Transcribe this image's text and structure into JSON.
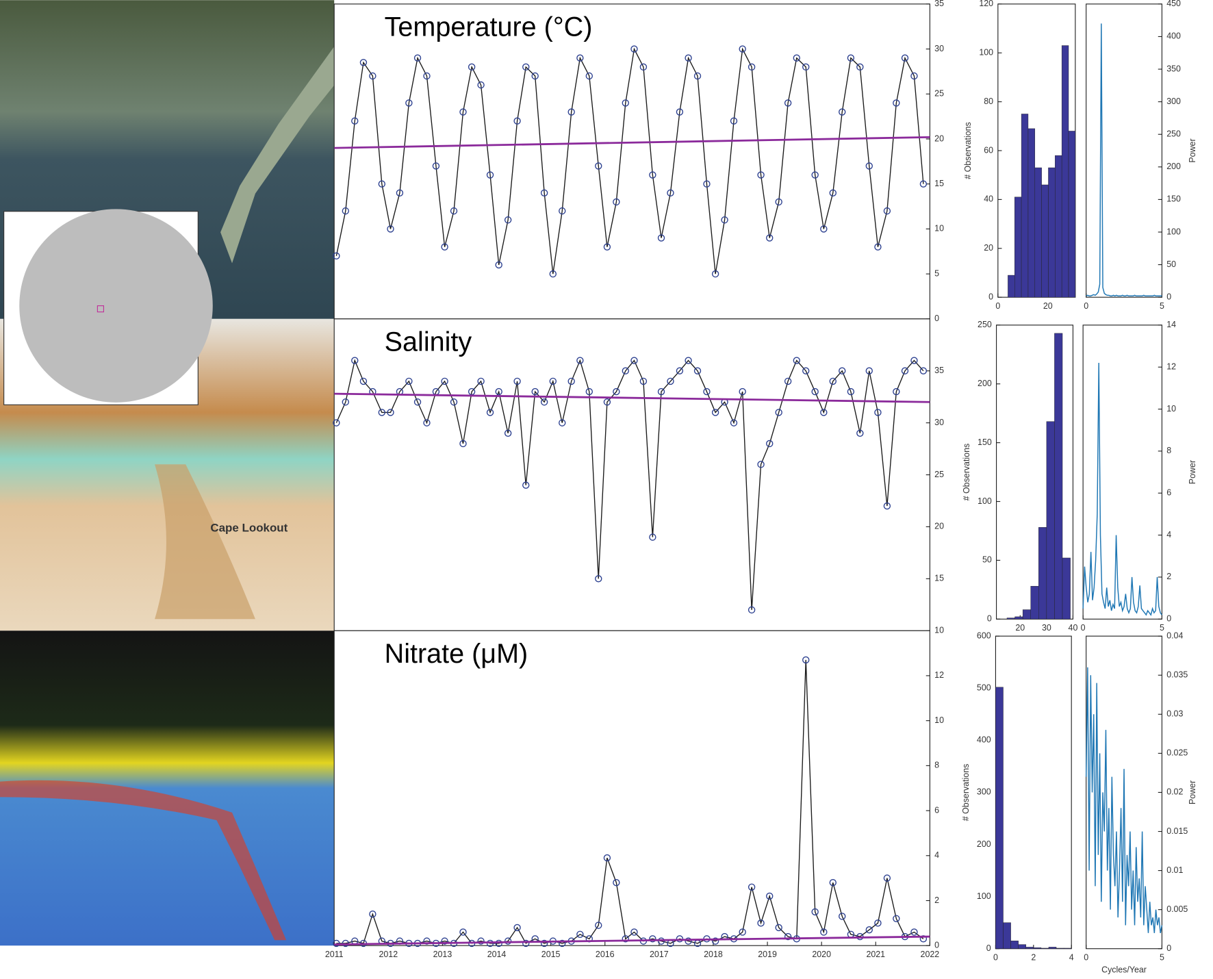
{
  "map_label": "Cape Lookout",
  "chart_data": [
    {
      "type": "line",
      "title": "Temperature (°C)",
      "xlim": [
        2011,
        2022
      ],
      "ylim": [
        0,
        35
      ],
      "yticks": [
        0,
        5,
        10,
        15,
        20,
        25,
        30,
        35
      ],
      "y_axis": "right",
      "x": [
        2011.04,
        2011.21,
        2011.38,
        2011.54,
        2011.71,
        2011.88,
        2012.04,
        2012.21,
        2012.38,
        2012.54,
        2012.71,
        2012.88,
        2013.04,
        2013.21,
        2013.38,
        2013.54,
        2013.71,
        2013.88,
        2014.04,
        2014.21,
        2014.38,
        2014.54,
        2014.71,
        2014.88,
        2015.04,
        2015.21,
        2015.38,
        2015.54,
        2015.71,
        2015.88,
        2016.04,
        2016.21,
        2016.38,
        2016.54,
        2016.71,
        2016.88,
        2017.04,
        2017.21,
        2017.38,
        2017.54,
        2017.71,
        2017.88,
        2018.04,
        2018.21,
        2018.38,
        2018.54,
        2018.71,
        2018.88,
        2019.04,
        2019.21,
        2019.38,
        2019.54,
        2019.71,
        2019.88,
        2020.04,
        2020.21,
        2020.38,
        2020.54,
        2020.71,
        2020.88,
        2021.04,
        2021.21,
        2021.38,
        2021.54,
        2021.71,
        2021.88
      ],
      "series": [
        {
          "color": "#1a1a1a",
          "marker_color": "#2b3f8f",
          "values": [
            7,
            12,
            22,
            28.5,
            27,
            15,
            10,
            14,
            24,
            29,
            27,
            17,
            8,
            12,
            23,
            28,
            26,
            16,
            6,
            11,
            22,
            28,
            27,
            14,
            5,
            12,
            23,
            29,
            27,
            17,
            8,
            13,
            24,
            30,
            28,
            16,
            9,
            14,
            23,
            29,
            27,
            15,
            5,
            11,
            22,
            30,
            28,
            16,
            9,
            13,
            24,
            29,
            28,
            16,
            10,
            14,
            23,
            29,
            28,
            17,
            8,
            12,
            24,
            29,
            27,
            15
          ]
        }
      ],
      "trend": {
        "x": [
          2011,
          2022
        ],
        "values": [
          19,
          20.2
        ],
        "color": "#8b2a9b"
      }
    },
    {
      "type": "line",
      "title": "Salinity",
      "xlim": [
        2011,
        2022
      ],
      "ylim": [
        10,
        40
      ],
      "yticks": [
        10,
        15,
        20,
        25,
        30,
        35
      ],
      "y_axis": "right",
      "x": [
        2011.04,
        2011.21,
        2011.38,
        2011.54,
        2011.71,
        2011.88,
        2012.04,
        2012.21,
        2012.38,
        2012.54,
        2012.71,
        2012.88,
        2013.04,
        2013.21,
        2013.38,
        2013.54,
        2013.71,
        2013.88,
        2014.04,
        2014.21,
        2014.38,
        2014.54,
        2014.71,
        2014.88,
        2015.04,
        2015.21,
        2015.38,
        2015.54,
        2015.71,
        2015.88,
        2016.04,
        2016.21,
        2016.38,
        2016.54,
        2016.71,
        2016.88,
        2017.04,
        2017.21,
        2017.38,
        2017.54,
        2017.71,
        2017.88,
        2018.04,
        2018.21,
        2018.38,
        2018.54,
        2018.71,
        2018.88,
        2019.04,
        2019.21,
        2019.38,
        2019.54,
        2019.71,
        2019.88,
        2020.04,
        2020.21,
        2020.38,
        2020.54,
        2020.71,
        2020.88,
        2021.04,
        2021.21,
        2021.38,
        2021.54,
        2021.71,
        2021.88
      ],
      "series": [
        {
          "color": "#1a1a1a",
          "marker_color": "#2b3f8f",
          "values": [
            30,
            32,
            36,
            34,
            33,
            31,
            31,
            33,
            34,
            32,
            30,
            33,
            34,
            32,
            28,
            33,
            34,
            31,
            33,
            29,
            34,
            24,
            33,
            32,
            34,
            30,
            34,
            36,
            33,
            15,
            32,
            33,
            35,
            36,
            34,
            19,
            33,
            34,
            35,
            36,
            35,
            33,
            31,
            32,
            30,
            33,
            12,
            26,
            28,
            31,
            34,
            36,
            35,
            33,
            31,
            34,
            35,
            33,
            29,
            35,
            31,
            22,
            33,
            35,
            36,
            35
          ]
        }
      ],
      "trend": {
        "x": [
          2011,
          2022
        ],
        "values": [
          32.8,
          32.0
        ],
        "color": "#8b2a9b"
      }
    },
    {
      "type": "line",
      "title": "Nitrate (μM)",
      "xlim": [
        2011,
        2022
      ],
      "ylim": [
        0,
        14
      ],
      "yticks": [
        0,
        2,
        4,
        6,
        8,
        10,
        12
      ],
      "y_axis": "right",
      "xticks": [
        2011,
        2012,
        2013,
        2014,
        2015,
        2016,
        2017,
        2018,
        2019,
        2020,
        2021,
        2022
      ],
      "x": [
        2011.04,
        2011.21,
        2011.38,
        2011.54,
        2011.71,
        2011.88,
        2012.04,
        2012.21,
        2012.38,
        2012.54,
        2012.71,
        2012.88,
        2013.04,
        2013.21,
        2013.38,
        2013.54,
        2013.71,
        2013.88,
        2014.04,
        2014.21,
        2014.38,
        2014.54,
        2014.71,
        2014.88,
        2015.04,
        2015.21,
        2015.38,
        2015.54,
        2015.71,
        2015.88,
        2016.04,
        2016.21,
        2016.38,
        2016.54,
        2016.71,
        2016.88,
        2017.04,
        2017.21,
        2017.38,
        2017.54,
        2017.71,
        2017.88,
        2018.04,
        2018.21,
        2018.38,
        2018.54,
        2018.71,
        2018.88,
        2019.04,
        2019.21,
        2019.38,
        2019.54,
        2019.71,
        2019.88,
        2020.04,
        2020.21,
        2020.38,
        2020.54,
        2020.71,
        2020.88,
        2021.04,
        2021.21,
        2021.38,
        2021.54,
        2021.71,
        2021.88
      ],
      "series": [
        {
          "color": "#1a1a1a",
          "marker_color": "#2b3f8f",
          "values": [
            0.1,
            0.1,
            0.2,
            0.1,
            1.4,
            0.2,
            0.1,
            0.2,
            0.1,
            0.1,
            0.2,
            0.1,
            0.2,
            0.1,
            0.6,
            0.1,
            0.2,
            0.1,
            0.1,
            0.2,
            0.8,
            0.1,
            0.3,
            0.1,
            0.2,
            0.1,
            0.2,
            0.5,
            0.3,
            0.9,
            3.9,
            2.8,
            0.3,
            0.6,
            0.2,
            0.3,
            0.2,
            0.1,
            0.3,
            0.2,
            0.1,
            0.3,
            0.2,
            0.4,
            0.3,
            0.6,
            2.6,
            1.0,
            2.2,
            0.8,
            0.4,
            0.3,
            12.7,
            1.5,
            0.6,
            2.8,
            1.3,
            0.5,
            0.4,
            0.7,
            1.0,
            3.0,
            1.2,
            0.4,
            0.6,
            0.3
          ]
        }
      ],
      "trend": {
        "x": [
          2011,
          2022
        ],
        "values": [
          0.05,
          0.4
        ],
        "color": "#8b2a9b"
      }
    },
    {
      "type": "histogram",
      "ylabel": "# Observations",
      "color": "#3b3898",
      "xlim": [
        0,
        31
      ],
      "xticks": [
        0,
        20
      ],
      "ylim": [
        0,
        120
      ],
      "yticks": [
        0,
        20,
        40,
        60,
        80,
        100,
        120
      ],
      "bins": [
        4,
        6.7,
        9.4,
        12.1,
        14.8,
        17.5,
        20.2,
        22.9,
        25.6,
        28.3,
        31
      ],
      "values": [
        9,
        41,
        75,
        69,
        53,
        46,
        53,
        58,
        103,
        68
      ]
    },
    {
      "type": "spectrum",
      "ylabel": "Power",
      "color": "#1f77b4",
      "y_axis": "right",
      "xlim": [
        0,
        5
      ],
      "xticks": [
        0,
        5
      ],
      "ylim": [
        0,
        450
      ],
      "yticks": [
        0,
        50,
        100,
        150,
        200,
        250,
        300,
        350,
        400,
        450
      ],
      "x": [
        0,
        0.1,
        0.2,
        0.3,
        0.4,
        0.5,
        0.6,
        0.7,
        0.8,
        0.9,
        1,
        1.1,
        1.2,
        1.3,
        1.4,
        1.5,
        1.6,
        1.7,
        1.8,
        1.9,
        2,
        2.1,
        2.2,
        2.3,
        2.4,
        2.5,
        2.6,
        2.7,
        2.8,
        2.9,
        3,
        3.1,
        3.2,
        3.3,
        3.4,
        3.5,
        3.6,
        3.7,
        3.8,
        3.9,
        4,
        4.1,
        4.2,
        4.3,
        4.4,
        4.5,
        4.6,
        4.7,
        4.8,
        4.9,
        5
      ],
      "values": [
        2,
        3,
        2,
        2,
        3,
        4,
        3,
        5,
        8,
        20,
        420,
        15,
        6,
        4,
        3,
        3,
        2,
        2,
        3,
        2,
        3,
        2,
        2,
        2,
        3,
        2,
        2,
        3,
        2,
        2,
        2,
        2,
        3,
        2,
        2,
        2,
        2,
        2,
        3,
        2,
        2,
        2,
        2,
        2,
        2,
        3,
        2,
        2,
        2,
        2,
        2
      ]
    },
    {
      "type": "histogram",
      "ylabel": "# Observations",
      "color": "#3b3898",
      "xlim": [
        11,
        40
      ],
      "xticks": [
        20,
        30,
        40
      ],
      "ylim": [
        0,
        250
      ],
      "yticks": [
        0,
        50,
        100,
        150,
        200,
        250
      ],
      "bins": [
        15,
        18,
        21,
        24,
        27,
        30,
        33,
        36,
        39
      ],
      "values": [
        1,
        2,
        8,
        28,
        78,
        168,
        243,
        52
      ]
    },
    {
      "type": "spectrum",
      "ylabel": "Power",
      "color": "#1f77b4",
      "y_axis": "right",
      "xlim": [
        0,
        5
      ],
      "xticks": [
        0,
        5
      ],
      "ylim": [
        0,
        14
      ],
      "yticks": [
        0,
        2,
        4,
        6,
        8,
        10,
        12,
        14
      ],
      "x": [
        0,
        0.1,
        0.2,
        0.3,
        0.4,
        0.5,
        0.6,
        0.7,
        0.8,
        0.9,
        1,
        1.1,
        1.2,
        1.3,
        1.4,
        1.5,
        1.6,
        1.7,
        1.8,
        1.9,
        2,
        2.1,
        2.2,
        2.3,
        2.4,
        2.5,
        2.6,
        2.7,
        2.8,
        2.9,
        3,
        3.1,
        3.2,
        3.3,
        3.4,
        3.5,
        3.6,
        3.7,
        3.8,
        3.9,
        4,
        4.1,
        4.2,
        4.3,
        4.4,
        4.5,
        4.6,
        4.7,
        4.8,
        4.9,
        5
      ],
      "values": [
        0.5,
        2.5,
        1.5,
        0.8,
        1.2,
        3.2,
        0.9,
        1.5,
        2.8,
        5,
        12.2,
        4,
        1.2,
        0.8,
        0.5,
        1.5,
        0.6,
        0.9,
        0.4,
        0.7,
        0.5,
        4.0,
        1.5,
        0.6,
        0.8,
        0.4,
        0.6,
        1.2,
        0.5,
        0.3,
        0.5,
        2.0,
        0.8,
        0.4,
        0.3,
        0.6,
        1.6,
        0.5,
        0.4,
        0.3,
        0.2,
        0.4,
        0.3,
        0.2,
        0.5,
        0.3,
        0.4,
        2.0,
        0.6,
        0.3,
        0.2
      ]
    },
    {
      "type": "histogram",
      "ylabel": "# Observations",
      "color": "#3b3898",
      "xlim": [
        0,
        4
      ],
      "xticks": [
        0,
        2,
        4
      ],
      "ylim": [
        0,
        600
      ],
      "yticks": [
        0,
        100,
        200,
        300,
        400,
        500,
        600
      ],
      "bins": [
        0,
        0.4,
        0.8,
        1.2,
        1.6,
        2,
        2.4,
        2.8,
        3.2,
        3.6,
        4
      ],
      "values": [
        502,
        50,
        15,
        8,
        3,
        2,
        1,
        3,
        1,
        1
      ]
    },
    {
      "type": "spectrum",
      "ylabel": "Power",
      "xlabel": "Cycles/Year",
      "color": "#1f77b4",
      "y_axis": "right",
      "xlim": [
        0,
        5
      ],
      "xticks": [
        0,
        5
      ],
      "ylim": [
        0,
        0.04
      ],
      "yticks": [
        0,
        0.005,
        0.01,
        0.015,
        0.02,
        0.025,
        0.03,
        0.035,
        0.04
      ],
      "x": [
        0,
        0.1,
        0.2,
        0.3,
        0.4,
        0.5,
        0.6,
        0.7,
        0.8,
        0.9,
        1,
        1.1,
        1.2,
        1.3,
        1.4,
        1.5,
        1.6,
        1.7,
        1.8,
        1.9,
        2,
        2.1,
        2.2,
        2.3,
        2.4,
        2.5,
        2.6,
        2.7,
        2.8,
        2.9,
        3,
        3.1,
        3.2,
        3.3,
        3.4,
        3.5,
        3.6,
        3.7,
        3.8,
        3.9,
        4,
        4.1,
        4.2,
        4.3,
        4.4,
        4.5,
        4.6,
        4.7,
        4.8,
        4.9,
        5
      ],
      "values": [
        0.022,
        0.036,
        0.01,
        0.035,
        0.02,
        0.03,
        0.008,
        0.034,
        0.012,
        0.025,
        0.006,
        0.02,
        0.015,
        0.028,
        0.01,
        0.018,
        0.005,
        0.022,
        0.012,
        0.008,
        0.015,
        0.004,
        0.01,
        0.018,
        0.006,
        0.023,
        0.003,
        0.012,
        0.008,
        0.015,
        0.005,
        0.01,
        0.003,
        0.013,
        0.006,
        0.009,
        0.004,
        0.015,
        0.003,
        0.008,
        0.005,
        0.002,
        0.006,
        0.003,
        0.004,
        0.002,
        0.005,
        0.003,
        0.004,
        0.002,
        0.003
      ]
    }
  ]
}
